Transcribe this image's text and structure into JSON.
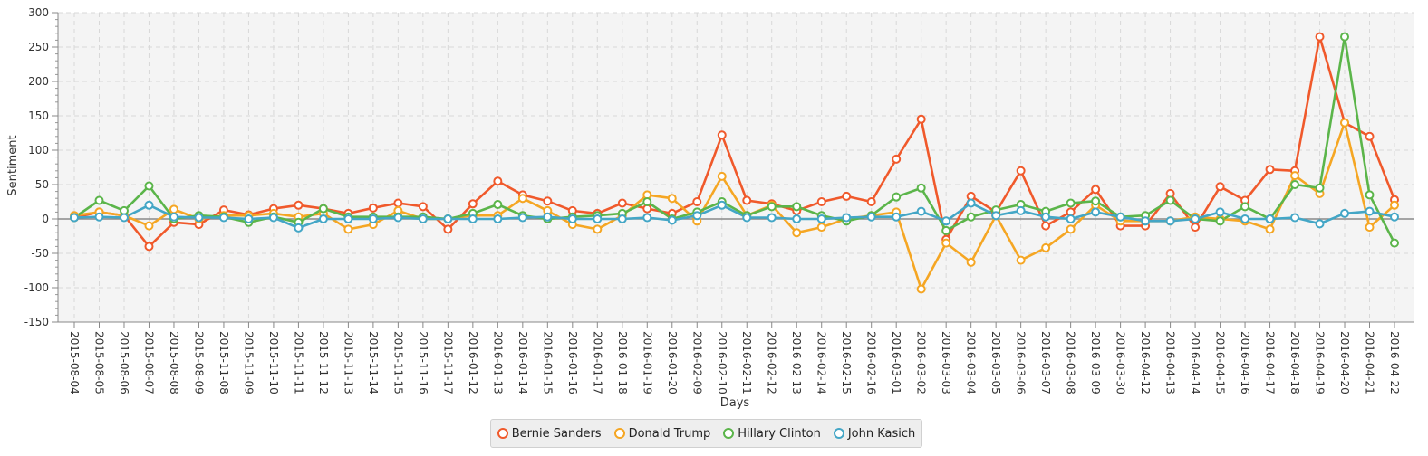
{
  "chart_data": {
    "type": "line",
    "xlabel": "Days",
    "ylabel": "Sentiment",
    "ylim": [
      -150,
      300
    ],
    "y_ticks": [
      -150,
      -100,
      -50,
      0,
      50,
      100,
      150,
      200,
      250,
      300
    ],
    "grid": true,
    "legend": "bottom",
    "categories": [
      "2015-08-04",
      "2015-08-05",
      "2015-08-06",
      "2015-08-07",
      "2015-08-08",
      "2015-08-09",
      "2015-11-08",
      "2015-11-09",
      "2015-11-10",
      "2015-11-11",
      "2015-11-12",
      "2015-11-13",
      "2015-11-14",
      "2015-11-15",
      "2015-11-16",
      "2015-11-17",
      "2016-01-12",
      "2016-01-13",
      "2016-01-14",
      "2016-01-15",
      "2016-01-16",
      "2016-01-17",
      "2016-01-18",
      "2016-01-19",
      "2016-01-20",
      "2016-02-09",
      "2016-02-10",
      "2016-02-11",
      "2016-02-12",
      "2016-02-13",
      "2016-02-14",
      "2016-02-15",
      "2016-02-16",
      "2016-03-01",
      "2016-03-02",
      "2016-03-03",
      "2016-03-04",
      "2016-03-05",
      "2016-03-06",
      "2016-03-07",
      "2016-03-08",
      "2016-03-09",
      "2016-03-30",
      "2016-04-12",
      "2016-04-13",
      "2016-04-14",
      "2016-04-15",
      "2016-04-16",
      "2016-04-17",
      "2016-04-18",
      "2016-04-19",
      "2016-04-20",
      "2016-04-21",
      "2016-04-22"
    ],
    "series": [
      {
        "name": "Bernie Sanders",
        "color": "#f0592b",
        "values": [
          2,
          10,
          5,
          -40,
          -5,
          -8,
          13,
          6,
          15,
          20,
          15,
          8,
          16,
          23,
          18,
          -15,
          22,
          55,
          35,
          26,
          12,
          8,
          23,
          15,
          8,
          25,
          122,
          27,
          22,
          12,
          25,
          33,
          25,
          87,
          145,
          -30,
          33,
          10,
          70,
          -10,
          10,
          43,
          -10,
          -10,
          37,
          -12,
          47,
          27,
          72,
          70,
          265,
          140,
          120,
          28
        ]
      },
      {
        "name": "Donald Trump",
        "color": "#f5a623",
        "values": [
          5,
          10,
          5,
          -10,
          14,
          0,
          5,
          5,
          8,
          3,
          8,
          -15,
          -8,
          12,
          0,
          0,
          5,
          5,
          30,
          12,
          -8,
          -15,
          5,
          35,
          30,
          -3,
          62,
          5,
          20,
          -20,
          -12,
          0,
          5,
          10,
          -102,
          -35,
          -63,
          5,
          -60,
          -42,
          -15,
          20,
          -3,
          -3,
          -3,
          3,
          0,
          -3,
          -15,
          63,
          37,
          140,
          -12,
          20
        ]
      },
      {
        "name": "Hillary Clinton",
        "color": "#5bb54a",
        "values": [
          2,
          27,
          12,
          48,
          0,
          5,
          3,
          -5,
          3,
          -5,
          15,
          3,
          3,
          3,
          3,
          0,
          8,
          21,
          5,
          0,
          3,
          5,
          8,
          25,
          0,
          10,
          25,
          5,
          18,
          18,
          5,
          -3,
          5,
          32,
          45,
          -17,
          3,
          13,
          21,
          11,
          23,
          26,
          3,
          5,
          27,
          0,
          -3,
          18,
          0,
          50,
          45,
          265,
          35,
          -35
        ]
      },
      {
        "name": "John Kasich",
        "color": "#43a6c6",
        "values": [
          2,
          3,
          2,
          20,
          3,
          2,
          2,
          0,
          2,
          -13,
          0,
          0,
          0,
          2,
          0,
          0,
          0,
          0,
          2,
          3,
          0,
          0,
          0,
          2,
          -2,
          5,
          20,
          2,
          2,
          0,
          0,
          2,
          3,
          3,
          11,
          -3,
          23,
          5,
          12,
          3,
          0,
          10,
          3,
          -3,
          -3,
          0,
          10,
          0,
          0,
          2,
          -7,
          8,
          11,
          3
        ]
      }
    ]
  }
}
